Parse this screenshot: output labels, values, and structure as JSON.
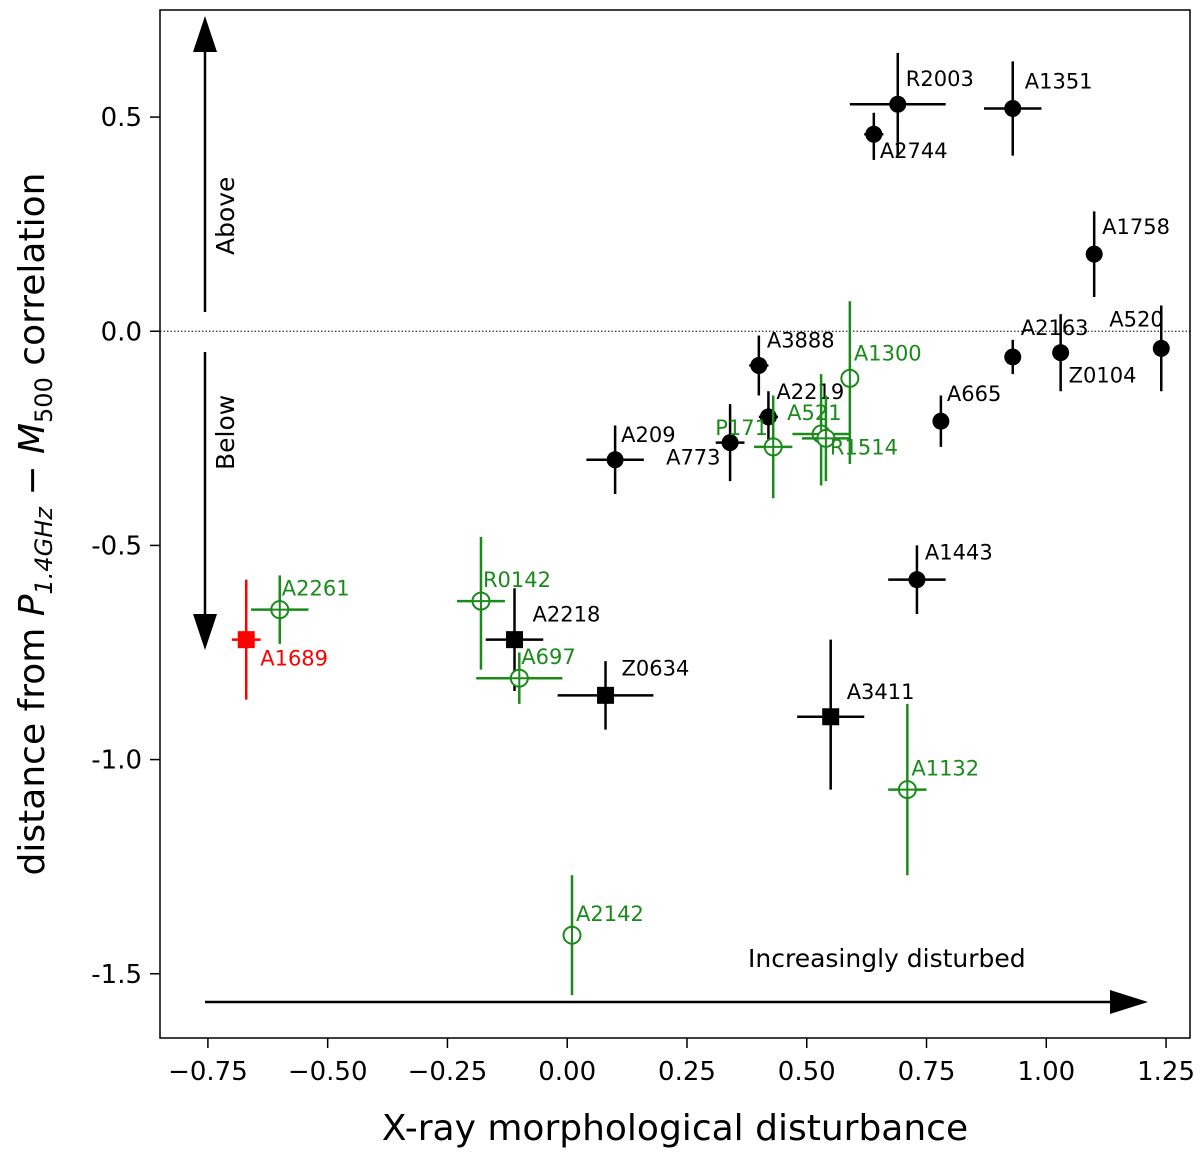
{
  "chart_data": {
    "type": "scatter",
    "title": "",
    "xlabel": "X-ray morphological disturbance",
    "ylabel": "distance from P_{1.4GHz} − M_{500} correlation",
    "ylabel_parts": {
      "prefix": "distance from ",
      "p": "P",
      "p_sub": "1.4GHz",
      "dash": " − ",
      "m": "M",
      "m_sub": "500",
      "suffix": " correlation"
    },
    "xlim": [
      -0.85,
      1.3
    ],
    "ylim": [
      -1.65,
      0.75
    ],
    "xticks": [
      -0.75,
      -0.5,
      -0.25,
      0.0,
      0.25,
      0.5,
      0.75,
      1.0,
      1.25
    ],
    "xtick_labels": [
      "−0.75",
      "−0.50",
      "−0.25",
      "0.00",
      "0.25",
      "0.50",
      "0.75",
      "1.00",
      "1.25"
    ],
    "yticks": [
      0.5,
      0.0,
      -0.5,
      -1.0,
      -1.5
    ],
    "ytick_labels": [
      "0.5",
      "0.0",
      "-0.5",
      "-1.0",
      "-1.5"
    ],
    "reference_line_y": 0.0,
    "annotations": {
      "above": "Above",
      "below": "Below",
      "disturbed": "Increasingly disturbed"
    },
    "colors": {
      "black": "#000000",
      "green": "#1a8a1a",
      "red": "#ff0000"
    },
    "points": [
      {
        "name": "R2003",
        "x": 0.69,
        "y": 0.53,
        "xerr": 0.1,
        "yerr_up": 0.12,
        "yerr_dn": 0.12,
        "marker": "circle",
        "color": "black",
        "label_dx": 8,
        "label_dy": -18
      },
      {
        "name": "A1351",
        "x": 0.93,
        "y": 0.52,
        "xerr": 0.06,
        "yerr_up": 0.11,
        "yerr_dn": 0.11,
        "marker": "circle",
        "color": "black",
        "label_dx": 12,
        "label_dy": -20
      },
      {
        "name": "A2744",
        "x": 0.64,
        "y": 0.46,
        "xerr": 0.02,
        "yerr_up": 0.05,
        "yerr_dn": 0.06,
        "marker": "circle",
        "color": "black",
        "label_dx": 6,
        "label_dy": 24
      },
      {
        "name": "A1758",
        "x": 1.1,
        "y": 0.18,
        "xerr": 0.0,
        "yerr_up": 0.1,
        "yerr_dn": 0.1,
        "marker": "circle",
        "color": "black",
        "label_dx": 8,
        "label_dy": -20
      },
      {
        "name": "A2163",
        "x": 0.93,
        "y": -0.06,
        "xerr": 0.0,
        "yerr_up": 0.04,
        "yerr_dn": 0.04,
        "marker": "circle",
        "color": "black",
        "label_dx": 8,
        "label_dy": -22
      },
      {
        "name": "Z0104",
        "x": 1.03,
        "y": -0.05,
        "xerr": 0.0,
        "yerr_up": 0.09,
        "yerr_dn": 0.09,
        "marker": "circle",
        "color": "black",
        "label_dx": 8,
        "label_dy": 30
      },
      {
        "name": "A520",
        "x": 1.24,
        "y": -0.04,
        "xerr": 0.0,
        "yerr_up": 0.1,
        "yerr_dn": 0.1,
        "marker": "circle",
        "color": "black",
        "label_dx": -52,
        "label_dy": -22
      },
      {
        "name": "A3888",
        "x": 0.4,
        "y": -0.08,
        "xerr": 0.02,
        "yerr_up": 0.07,
        "yerr_dn": 0.07,
        "marker": "circle",
        "color": "black",
        "label_dx": 8,
        "label_dy": -18
      },
      {
        "name": "A2219",
        "x": 0.42,
        "y": -0.2,
        "xerr": 0.02,
        "yerr_up": 0.06,
        "yerr_dn": 0.06,
        "marker": "circle",
        "color": "black",
        "label_dx": 8,
        "label_dy": -18
      },
      {
        "name": "A665",
        "x": 0.78,
        "y": -0.21,
        "xerr": 0.0,
        "yerr_up": 0.06,
        "yerr_dn": 0.06,
        "marker": "circle",
        "color": "black",
        "label_dx": 6,
        "label_dy": -20
      },
      {
        "name": "A209",
        "x": 0.1,
        "y": -0.3,
        "xerr": 0.06,
        "yerr_up": 0.08,
        "yerr_dn": 0.08,
        "marker": "circle",
        "color": "black",
        "label_dx": 6,
        "label_dy": -18
      },
      {
        "name": "A773",
        "x": 0.34,
        "y": -0.26,
        "xerr": 0.03,
        "yerr_up": 0.09,
        "yerr_dn": 0.09,
        "marker": "circle",
        "color": "black",
        "label_dx": -64,
        "label_dy": 22
      },
      {
        "name": "A1443",
        "x": 0.73,
        "y": -0.58,
        "xerr": 0.06,
        "yerr_up": 0.08,
        "yerr_dn": 0.08,
        "marker": "circle",
        "color": "black",
        "label_dx": 8,
        "label_dy": -20
      },
      {
        "name": "A2218",
        "x": -0.11,
        "y": -0.72,
        "xerr": 0.06,
        "yerr_up": 0.12,
        "yerr_dn": 0.12,
        "marker": "square",
        "color": "black",
        "label_dx": 18,
        "label_dy": -18
      },
      {
        "name": "Z0634",
        "x": 0.08,
        "y": -0.85,
        "xerr": 0.1,
        "yerr_up": 0.08,
        "yerr_dn": 0.08,
        "marker": "square",
        "color": "black",
        "label_dx": 16,
        "label_dy": -20
      },
      {
        "name": "A3411",
        "x": 0.55,
        "y": -0.9,
        "xerr": 0.07,
        "yerr_up": 0.18,
        "yerr_dn": 0.17,
        "marker": "square",
        "color": "black",
        "label_dx": 16,
        "label_dy": -18
      },
      {
        "name": "A1300",
        "x": 0.59,
        "y": -0.11,
        "xerr": 0.0,
        "yerr_up": 0.18,
        "yerr_dn": 0.2,
        "marker": "open",
        "color": "green",
        "label_dx": 4,
        "label_dy": -18
      },
      {
        "name": "P171",
        "x": 0.43,
        "y": -0.27,
        "xerr": 0.04,
        "yerr_up": 0.12,
        "yerr_dn": 0.12,
        "marker": "open",
        "color": "green",
        "label_dx": -58,
        "label_dy": -12
      },
      {
        "name": "A521",
        "x": 0.53,
        "y": -0.24,
        "xerr": 0.06,
        "yerr_up": 0.14,
        "yerr_dn": 0.12,
        "marker": "open",
        "color": "green",
        "label_dx": -34,
        "label_dy": -14
      },
      {
        "name": "R1514",
        "x": 0.54,
        "y": -0.25,
        "xerr": 0.05,
        "yerr_up": 0.1,
        "yerr_dn": 0.1,
        "marker": "open",
        "color": "green",
        "label_dx": 4,
        "label_dy": 16
      },
      {
        "name": "A2261",
        "x": -0.6,
        "y": -0.65,
        "xerr": 0.06,
        "yerr_up": 0.08,
        "yerr_dn": 0.08,
        "marker": "open",
        "color": "green",
        "label_dx": 2,
        "label_dy": -14
      },
      {
        "name": "R0142",
        "x": -0.18,
        "y": -0.63,
        "xerr": 0.05,
        "yerr_up": 0.15,
        "yerr_dn": 0.16,
        "marker": "open",
        "color": "green",
        "label_dx": 2,
        "label_dy": -14
      },
      {
        "name": "A697",
        "x": -0.1,
        "y": -0.81,
        "xerr": 0.09,
        "yerr_up": 0.06,
        "yerr_dn": 0.06,
        "marker": "open",
        "color": "green",
        "label_dx": 2,
        "label_dy": -14
      },
      {
        "name": "A1132",
        "x": 0.71,
        "y": -1.07,
        "xerr": 0.04,
        "yerr_up": 0.2,
        "yerr_dn": 0.2,
        "marker": "open",
        "color": "green",
        "label_dx": 4,
        "label_dy": -14
      },
      {
        "name": "A2142",
        "x": 0.01,
        "y": -1.41,
        "xerr": 0.0,
        "yerr_up": 0.14,
        "yerr_dn": 0.14,
        "marker": "open",
        "color": "green",
        "label_dx": 4,
        "label_dy": -14
      },
      {
        "name": "A1689",
        "x": -0.67,
        "y": -0.72,
        "xerr": 0.03,
        "yerr_up": 0.14,
        "yerr_dn": 0.14,
        "marker": "square",
        "color": "red",
        "label_dx": 14,
        "label_dy": 26
      }
    ]
  }
}
